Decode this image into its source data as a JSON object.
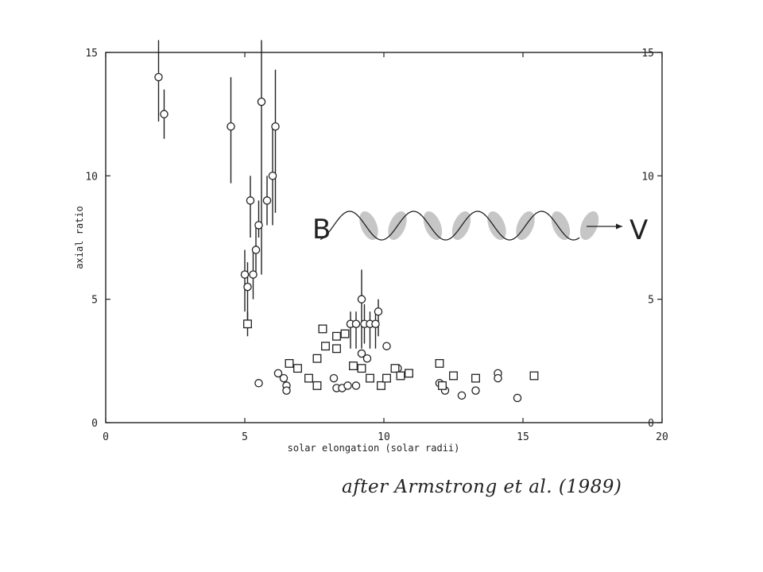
{
  "chart_data": {
    "type": "scatter",
    "title": "",
    "xlabel": "solar elongation (solar radii)",
    "ylabel": "axial ratio",
    "xlim": [
      0,
      20
    ],
    "ylim": [
      0,
      15
    ],
    "xticks": [
      0,
      5,
      10,
      15,
      20
    ],
    "yticks": [
      0,
      5,
      10,
      15
    ],
    "grid": false,
    "series": [
      {
        "marker": "circle",
        "points": [
          {
            "x": 1.9,
            "y": 14.0,
            "err": [
              12.2,
              15.5
            ]
          },
          {
            "x": 2.1,
            "y": 12.5,
            "err": [
              11.5,
              13.5
            ]
          },
          {
            "x": 4.5,
            "y": 12.0,
            "err": [
              9.7,
              14.0
            ]
          },
          {
            "x": 5.6,
            "y": 13.0,
            "err": [
              6.0,
              15.5
            ]
          },
          {
            "x": 6.1,
            "y": 12.0,
            "err": [
              8.5,
              14.3
            ]
          },
          {
            "x": 6.0,
            "y": 10.0,
            "err": [
              8.0,
              12.0
            ]
          },
          {
            "x": 5.2,
            "y": 9.0,
            "err": [
              7.5,
              10.0
            ]
          },
          {
            "x": 5.8,
            "y": 9.0,
            "err": [
              8.0,
              10.0
            ]
          },
          {
            "x": 5.5,
            "y": 8.0,
            "err": [
              7.5,
              9.0
            ]
          },
          {
            "x": 5.4,
            "y": 7.0,
            "err": [
              6.0,
              8.0
            ]
          },
          {
            "x": 5.0,
            "y": 6.0,
            "err": [
              4.5,
              7.0
            ]
          },
          {
            "x": 5.3,
            "y": 6.0,
            "err": [
              5.0,
              7.0
            ]
          },
          {
            "x": 5.1,
            "y": 5.5,
            "err": [
              3.5,
              6.5
            ]
          },
          {
            "x": 9.2,
            "y": 5.0,
            "err": [
              3.0,
              6.2
            ]
          },
          {
            "x": 9.8,
            "y": 4.5,
            "err": [
              3.5,
              5.0
            ]
          },
          {
            "x": 8.8,
            "y": 4.0,
            "err": [
              3.0,
              4.5
            ]
          },
          {
            "x": 9.0,
            "y": 4.0,
            "err": [
              3.0,
              4.5
            ]
          },
          {
            "x": 9.3,
            "y": 4.0,
            "err": [
              3.2,
              4.8
            ]
          },
          {
            "x": 9.5,
            "y": 4.0,
            "err": [
              3.0,
              4.5
            ]
          },
          {
            "x": 9.7,
            "y": 4.0,
            "err": [
              3.0,
              4.5
            ]
          },
          {
            "x": 9.2,
            "y": 2.8
          },
          {
            "x": 10.1,
            "y": 3.1
          },
          {
            "x": 9.4,
            "y": 2.6
          },
          {
            "x": 6.2,
            "y": 2.0
          },
          {
            "x": 6.4,
            "y": 1.8
          },
          {
            "x": 5.5,
            "y": 1.6
          },
          {
            "x": 6.5,
            "y": 1.5
          },
          {
            "x": 6.5,
            "y": 1.3
          },
          {
            "x": 8.2,
            "y": 1.8
          },
          {
            "x": 8.3,
            "y": 1.4
          },
          {
            "x": 8.5,
            "y": 1.4
          },
          {
            "x": 8.7,
            "y": 1.5
          },
          {
            "x": 9.0,
            "y": 1.5
          },
          {
            "x": 10.5,
            "y": 2.2
          },
          {
            "x": 12.0,
            "y": 1.6
          },
          {
            "x": 12.2,
            "y": 1.3
          },
          {
            "x": 12.8,
            "y": 1.1
          },
          {
            "x": 13.3,
            "y": 1.3
          },
          {
            "x": 14.1,
            "y": 2.0
          },
          {
            "x": 14.1,
            "y": 1.8
          },
          {
            "x": 14.8,
            "y": 1.0
          }
        ]
      },
      {
        "marker": "square",
        "points": [
          {
            "x": 5.1,
            "y": 4.0,
            "err": [
              3.8,
              4.5
            ]
          },
          {
            "x": 7.8,
            "y": 3.8
          },
          {
            "x": 8.3,
            "y": 3.5
          },
          {
            "x": 8.6,
            "y": 3.6
          },
          {
            "x": 7.9,
            "y": 3.1
          },
          {
            "x": 8.3,
            "y": 3.0
          },
          {
            "x": 7.6,
            "y": 2.6
          },
          {
            "x": 6.6,
            "y": 2.4
          },
          {
            "x": 6.9,
            "y": 2.2
          },
          {
            "x": 8.9,
            "y": 2.3
          },
          {
            "x": 9.2,
            "y": 2.2
          },
          {
            "x": 7.3,
            "y": 1.8
          },
          {
            "x": 7.6,
            "y": 1.5
          },
          {
            "x": 9.5,
            "y": 1.8
          },
          {
            "x": 9.9,
            "y": 1.5
          },
          {
            "x": 10.1,
            "y": 1.8
          },
          {
            "x": 10.4,
            "y": 2.2
          },
          {
            "x": 10.6,
            "y": 1.9
          },
          {
            "x": 10.9,
            "y": 2.0
          },
          {
            "x": 12.0,
            "y": 2.4
          },
          {
            "x": 12.1,
            "y": 1.5
          },
          {
            "x": 12.5,
            "y": 1.9
          },
          {
            "x": 13.3,
            "y": 1.8
          },
          {
            "x": 15.4,
            "y": 1.9
          }
        ]
      }
    ]
  },
  "inset": {
    "left_label": "B",
    "right_label": "V"
  },
  "caption": "after Armstrong et al. (1989)"
}
